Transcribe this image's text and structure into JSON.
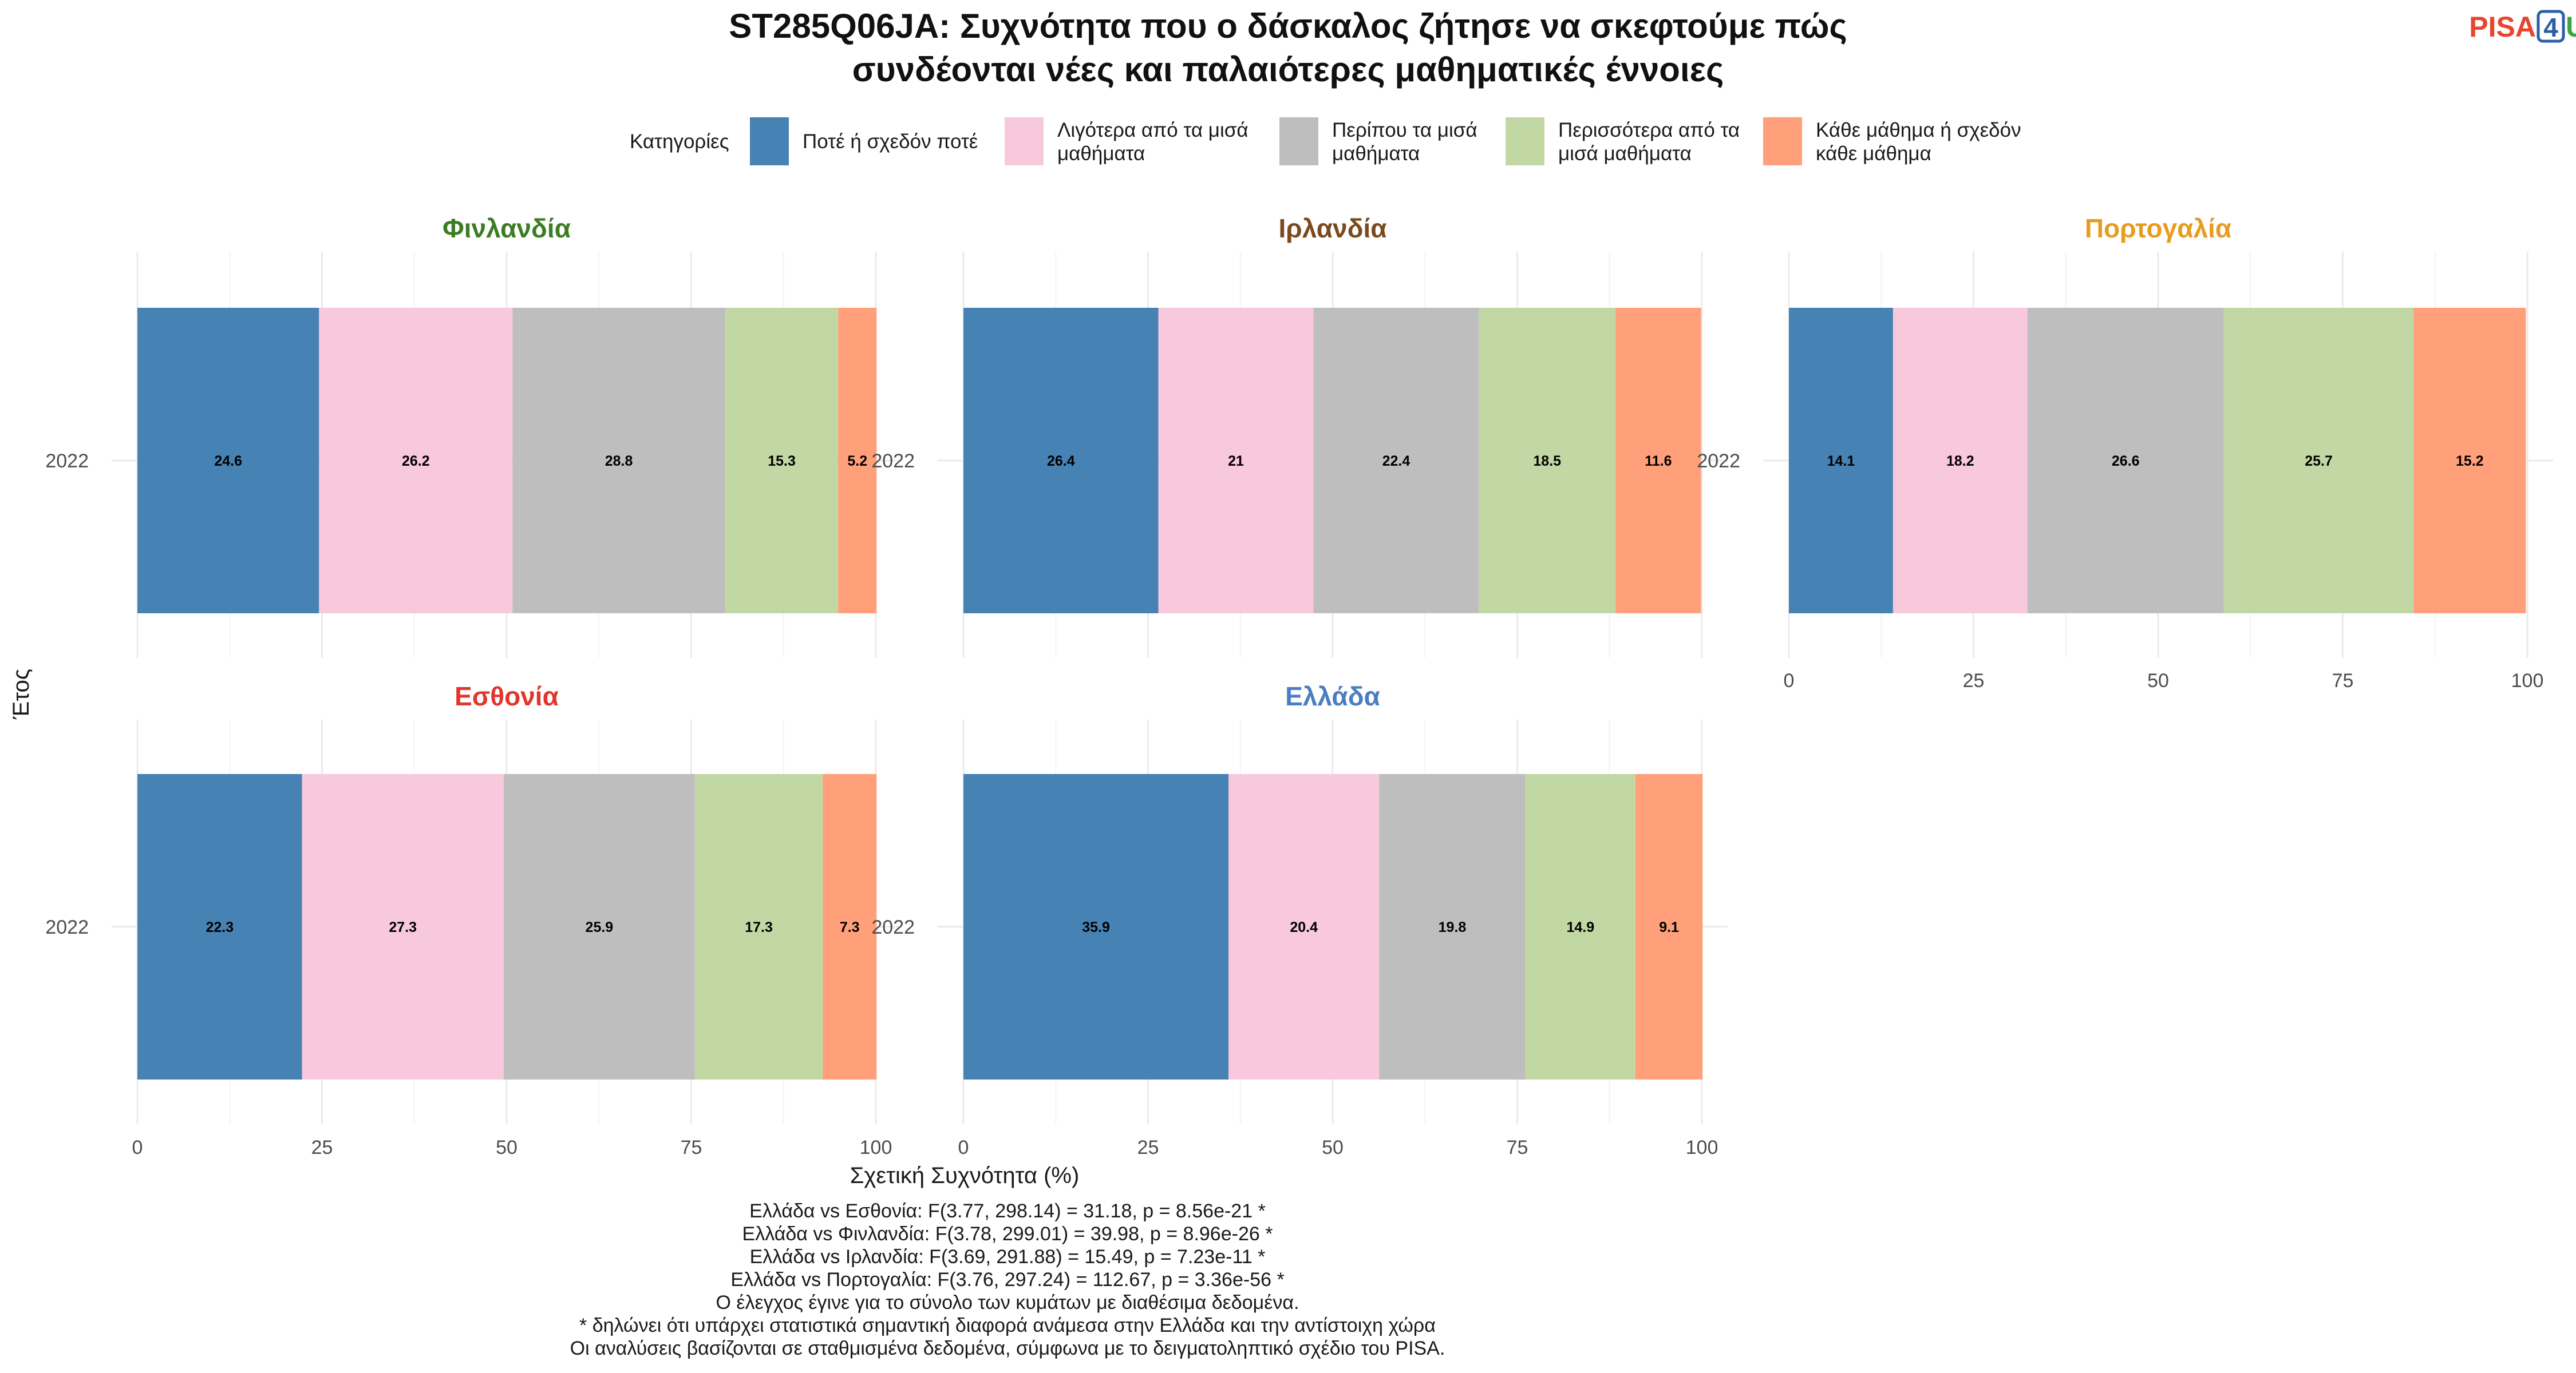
{
  "chart_data": {
    "type": "bar",
    "orientation": "horizontal",
    "stacked": true,
    "title_lines": [
      "ST285Q06JA: Συχνότητα που ο δάσκαλος ζήτησε να σκεφτούμε πώς",
      "συνδέονται νέες και παλαιότερες μαθηματικές έννοιες"
    ],
    "logo": {
      "text": "PISA",
      "badge": "4",
      "suffix": "U",
      "colors": {
        "pisa": "#e8452c",
        "badge": "#2b5fa6",
        "suffix": "#3aa640"
      }
    },
    "legend": {
      "title": "Κατηγορίες",
      "position": "top",
      "items": [
        {
          "lines": [
            "Ποτέ ή σχεδόν ποτέ"
          ],
          "color": "#4682b4"
        },
        {
          "lines": [
            "Λιγότερα από τα μισά",
            "μαθήματα"
          ],
          "color": "#f8c8dc"
        },
        {
          "lines": [
            "Περίπου τα μισά",
            "μαθήματα"
          ],
          "color": "#bebebe"
        },
        {
          "lines": [
            "Περισσότερα από τα",
            "μισά μαθήματα"
          ],
          "color": "#c2d8a4"
        },
        {
          "lines": [
            "Κάθε μάθημα ή σχεδόν",
            "κάθε μάθημα"
          ],
          "color": "#ffa07a"
        }
      ]
    },
    "xlabel": "Σχετική Συχνότητα (%)",
    "ylabel": "Έτος",
    "xlim": [
      0,
      100
    ],
    "xticks": [
      0,
      25,
      50,
      75,
      100
    ],
    "grid": true,
    "panels": [
      {
        "name": "Φινλανδία",
        "color": "#3b7d23",
        "year": "2022",
        "values": [
          24.6,
          26.2,
          28.8,
          15.3,
          5.2
        ]
      },
      {
        "name": "Ιρλανδία",
        "color": "#7a4a1e",
        "year": "2022",
        "values": [
          26.4,
          21,
          22.4,
          18.5,
          11.6
        ]
      },
      {
        "name": "Πορτογαλία",
        "color": "#e89c1f",
        "year": "2022",
        "values": [
          14.1,
          18.2,
          26.6,
          25.7,
          15.2
        ]
      },
      {
        "name": "Εσθονία",
        "color": "#e0362c",
        "year": "2022",
        "values": [
          22.3,
          27.3,
          25.9,
          17.3,
          7.3
        ]
      },
      {
        "name": "Ελλάδα",
        "color": "#4a7ec0",
        "year": "2022",
        "values": [
          35.9,
          20.4,
          19.8,
          14.9,
          9.1
        ]
      }
    ],
    "footnotes": [
      "Ελλάδα vs Εσθονία: F(3.77, 298.14) = 31.18, p = 8.56e-21 *",
      "Ελλάδα vs Φινλανδία: F(3.78, 299.01) = 39.98, p = 8.96e-26 *",
      "Ελλάδα vs Ιρλανδία: F(3.69, 291.88) = 15.49, p = 7.23e-11 *",
      "Ελλάδα vs Πορτογαλία: F(3.76, 297.24) = 112.67, p = 3.36e-56 *",
      "Ο έλεγχος έγινε για το σύνολο των κυμάτων με διαθέσιμα δεδομένα.",
      "* δηλώνει ότι υπάρχει στατιστικά σημαντική διαφορά ανάμεσα στην Ελλάδα και την αντίστοιχη χώρα",
      "Οι αναλύσεις βασίζονται σε σταθμισμένα δεδομένα, σύμφωνα με το δειγματοληπτικό σχέδιο του PISA."
    ]
  }
}
